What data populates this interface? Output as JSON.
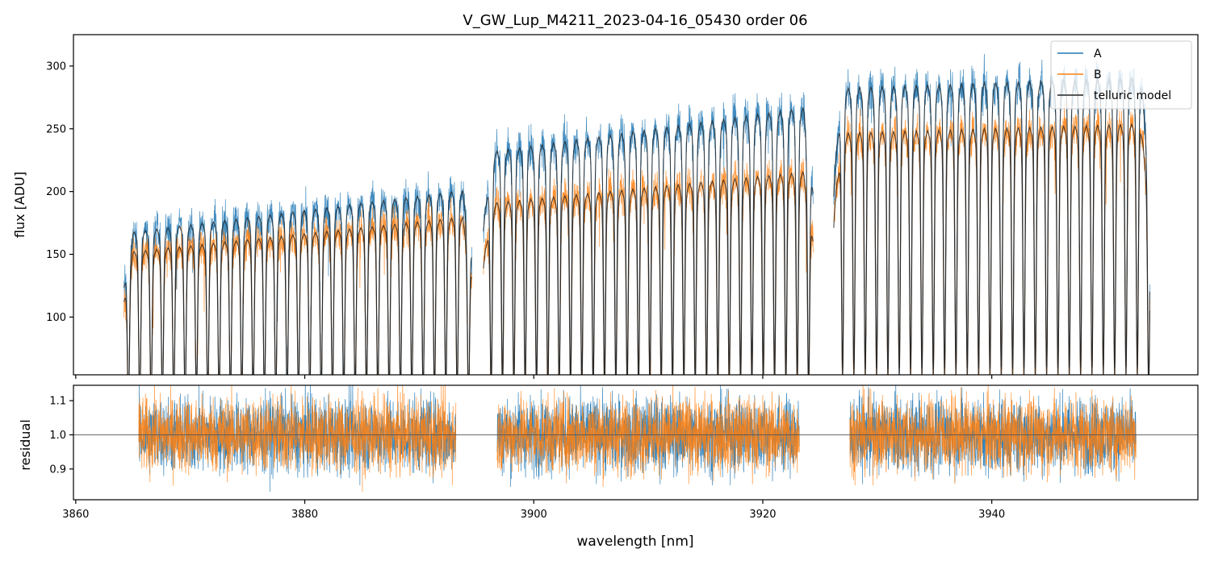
{
  "chart_data": [
    {
      "type": "line",
      "panel": "top",
      "title": "V_GW_Lup_M4211_2023-04-16_05430  order 06",
      "xlabel": "",
      "ylabel": "flux [ADU]",
      "xlim": [
        3859.8,
        3958.0
      ],
      "ylim": [
        54,
        325
      ],
      "xticks": [
        3860,
        3880,
        3900,
        3920,
        3940
      ],
      "yticks": [
        100,
        150,
        200,
        250,
        300
      ],
      "legend_position": "upper right",
      "series": [
        {
          "name": "A",
          "color": "#1f77b4",
          "segments": [
            {
              "x_start": 3864.2,
              "x_end": 3894.6,
              "continuum_start": 172,
              "continuum_end": 208
            },
            {
              "x_start": 3895.6,
              "x_end": 3924.4,
              "continuum_start": 238,
              "continuum_end": 276
            },
            {
              "x_start": 3926.2,
              "x_end": 3953.8,
              "continuum_start": 291,
              "continuum_end": 300
            }
          ]
        },
        {
          "name": "B",
          "color": "#ff7f0e",
          "segments": [
            {
              "x_start": 3864.2,
              "x_end": 3894.6,
              "continuum_start": 156,
              "continuum_end": 186
            },
            {
              "x_start": 3895.6,
              "x_end": 3924.4,
              "continuum_start": 196,
              "continuum_end": 223
            },
            {
              "x_start": 3926.2,
              "x_end": 3953.8,
              "continuum_start": 254,
              "continuum_end": 262
            }
          ]
        },
        {
          "name": "telluric model",
          "color": "#222222",
          "note": "smooth model through both traces with periodic absorption lines, spacing ~0.99 nm"
        }
      ]
    },
    {
      "type": "line",
      "panel": "bottom",
      "xlabel": "wavelength [nm]",
      "ylabel": "residual",
      "xlim": [
        3859.8,
        3958.0
      ],
      "ylim": [
        0.81,
        1.145
      ],
      "xticks": [
        3860,
        3880,
        3900,
        3920,
        3940
      ],
      "yticks": [
        0.9,
        1.0,
        1.1
      ],
      "reference_line": 1.0,
      "noise_sigma": 0.055,
      "segments": [
        [
          3865.5,
          3893.2
        ],
        [
          3896.8,
          3923.2
        ],
        [
          3927.6,
          3952.6
        ]
      ],
      "series": [
        {
          "name": "A",
          "color": "#1f77b4"
        },
        {
          "name": "B",
          "color": "#ff7f0e"
        }
      ]
    }
  ]
}
